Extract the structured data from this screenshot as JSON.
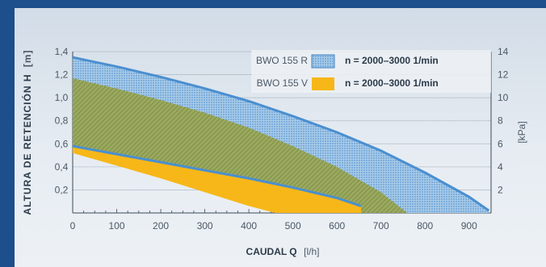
{
  "colors": {
    "band_r_fill": "#9ec5e8",
    "band_r_stroke": "#4a8fd0",
    "band_v_fill": "#f7b719",
    "overlap_fill": "#8fa35a",
    "border": "#1c4f8c"
  },
  "chart_data": {
    "type": "area",
    "title": "",
    "xlabel_bold": "CAUDAL Q",
    "xlabel_unit": "[l/h]",
    "ylabel_bold": "ALTURA DE RETENCIÓN H",
    "ylabel_unit": "[m]",
    "y2label": "[kPa]",
    "xlim": [
      0,
      950
    ],
    "ylim": [
      0,
      1.4
    ],
    "y2lim": [
      0,
      14
    ],
    "x_ticks": [
      "0",
      "100",
      "200",
      "300",
      "400",
      "500",
      "600",
      "700",
      "800",
      "900"
    ],
    "x_tick_values": [
      0,
      100,
      200,
      300,
      400,
      500,
      600,
      700,
      800,
      900
    ],
    "y_ticks": [
      "0,2",
      "0,4",
      "0,6",
      "0,8",
      "1,0",
      "1,2",
      "1,4"
    ],
    "y_tick_values": [
      0.2,
      0.4,
      0.6,
      0.8,
      1.0,
      1.2,
      1.4
    ],
    "y2_ticks": [
      "2",
      "4",
      "6",
      "8",
      "10",
      "12",
      "14"
    ],
    "y2_tick_values": [
      2,
      4,
      6,
      8,
      10,
      12,
      14
    ],
    "grid": true,
    "legend_placement": "top-right",
    "series": [
      {
        "name": "BWO 155 R",
        "speed": "n = 2000–3000 1/min",
        "upper": [
          [
            0,
            1.35
          ],
          [
            100,
            1.27
          ],
          [
            200,
            1.18
          ],
          [
            300,
            1.08
          ],
          [
            400,
            0.97
          ],
          [
            500,
            0.84
          ],
          [
            600,
            0.7
          ],
          [
            700,
            0.54
          ],
          [
            800,
            0.35
          ],
          [
            900,
            0.14
          ],
          [
            945,
            0.02
          ]
        ],
        "lower": [
          [
            0,
            0.58
          ],
          [
            100,
            0.51
          ],
          [
            200,
            0.44
          ],
          [
            300,
            0.37
          ],
          [
            400,
            0.3
          ],
          [
            500,
            0.22
          ],
          [
            600,
            0.13
          ],
          [
            655,
            0.06
          ]
        ]
      },
      {
        "name": "BWO 155 V",
        "speed": "n = 2000–3000 1/min",
        "upper": [
          [
            0,
            1.17
          ],
          [
            100,
            1.08
          ],
          [
            200,
            0.98
          ],
          [
            300,
            0.87
          ],
          [
            400,
            0.74
          ],
          [
            500,
            0.58
          ],
          [
            600,
            0.4
          ],
          [
            700,
            0.18
          ],
          [
            760,
            0.0
          ]
        ],
        "lower": [
          [
            0,
            0.52
          ],
          [
            100,
            0.41
          ],
          [
            200,
            0.3
          ],
          [
            300,
            0.18
          ],
          [
            400,
            0.06
          ],
          [
            460,
            0.0
          ]
        ]
      }
    ]
  }
}
